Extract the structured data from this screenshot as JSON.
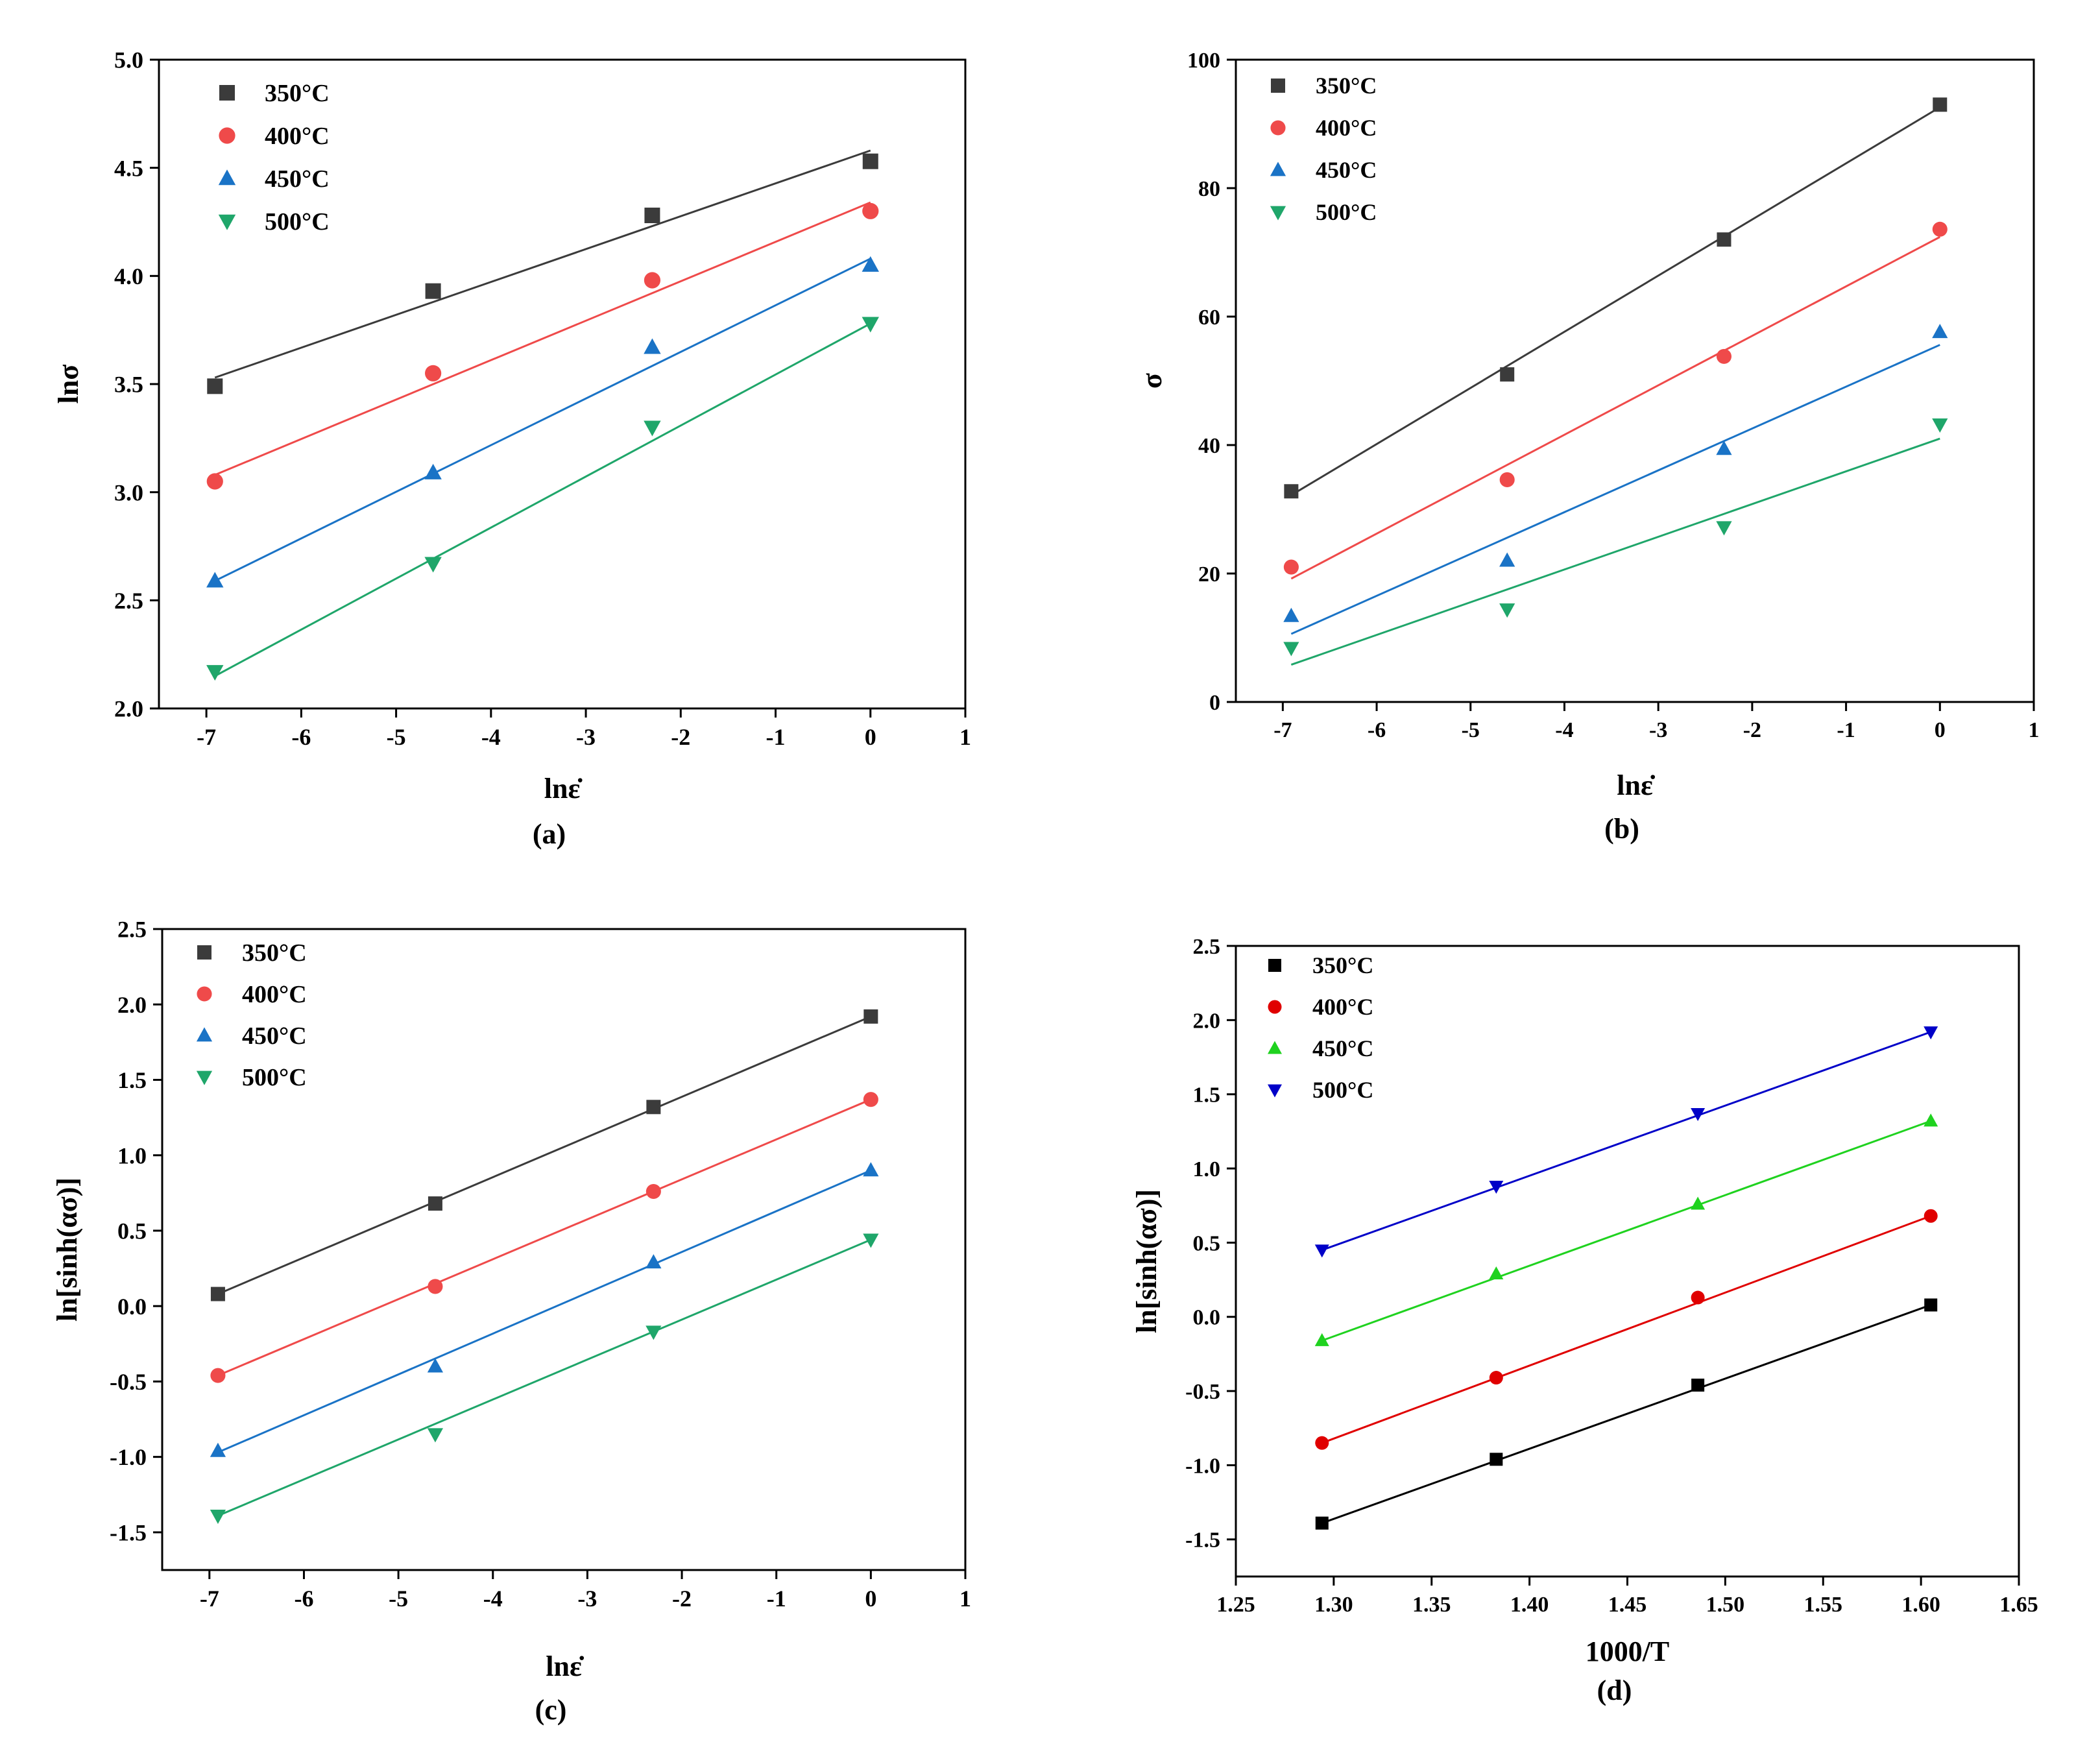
{
  "colors": {
    "p350": "#3b3b3b",
    "p400": "#ef4a4a",
    "p450": "#1a73c6",
    "p500": "#1fa66a",
    "d350": "#000000",
    "d400": "#e00000",
    "d450": "#1fd21f",
    "d500": "#0000c8"
  },
  "chart_data": [
    {
      "id": "a",
      "type": "scatter",
      "panel_label": "(a)",
      "xlabel": "lnε̇",
      "ylabel": "lnσ",
      "xlim": [
        -7.5,
        1
      ],
      "ylim": [
        2.0,
        5.0
      ],
      "xticks": [
        -7,
        -6,
        -5,
        -4,
        -3,
        -2,
        -1,
        0,
        1
      ],
      "yticks": [
        2.0,
        2.5,
        3.0,
        3.5,
        4.0,
        4.5,
        5.0
      ],
      "ytick_decimals": 1,
      "legend": "top-left",
      "series": [
        {
          "name": "350°C",
          "marker": "square",
          "color": "p350",
          "x": [
            -6.91,
            -4.61,
            -2.3,
            0
          ],
          "y": [
            3.49,
            3.93,
            4.28,
            4.53
          ],
          "fit": [
            [
              -6.91,
              3.53
            ],
            [
              0,
              4.58
            ]
          ]
        },
        {
          "name": "400°C",
          "marker": "circle",
          "color": "p400",
          "x": [
            -6.91,
            -4.61,
            -2.3,
            0
          ],
          "y": [
            3.05,
            3.55,
            3.98,
            4.3
          ],
          "fit": [
            [
              -6.91,
              3.08
            ],
            [
              0,
              4.34
            ]
          ]
        },
        {
          "name": "450°C",
          "marker": "triangle-up",
          "color": "p450",
          "x": [
            -6.91,
            -4.61,
            -2.3,
            0
          ],
          "y": [
            2.59,
            3.09,
            3.67,
            4.05
          ],
          "fit": [
            [
              -6.91,
              2.59
            ],
            [
              0,
              4.08
            ]
          ]
        },
        {
          "name": "500°C",
          "marker": "triangle-down",
          "color": "p500",
          "x": [
            -6.91,
            -4.61,
            -2.3,
            0
          ],
          "y": [
            2.17,
            2.67,
            3.3,
            3.78
          ],
          "fit": [
            [
              -6.91,
              2.15
            ],
            [
              0,
              3.78
            ]
          ]
        }
      ]
    },
    {
      "id": "b",
      "type": "scatter",
      "panel_label": "(b)",
      "xlabel": "lnε̇",
      "ylabel": "σ",
      "xlim": [
        -7.5,
        1
      ],
      "ylim": [
        0,
        100
      ],
      "xticks": [
        -7,
        -6,
        -5,
        -4,
        -3,
        -2,
        -1,
        0,
        1
      ],
      "yticks": [
        0,
        20,
        40,
        60,
        80,
        100
      ],
      "ytick_decimals": 0,
      "legend": "top-left",
      "series": [
        {
          "name": "350°C",
          "marker": "square",
          "color": "p350",
          "x": [
            -6.91,
            -4.61,
            -2.3,
            0
          ],
          "y": [
            32.8,
            51,
            72,
            93
          ],
          "fit": [
            [
              -6.91,
              32.2
            ],
            [
              0,
              92.6
            ]
          ]
        },
        {
          "name": "400°C",
          "marker": "circle",
          "color": "p400",
          "x": [
            -6.91,
            -4.61,
            -2.3,
            0
          ],
          "y": [
            21,
            34.6,
            53.8,
            73.6
          ],
          "fit": [
            [
              -6.91,
              19.2
            ],
            [
              0,
              72.4
            ]
          ]
        },
        {
          "name": "450°C",
          "marker": "triangle-up",
          "color": "p450",
          "x": [
            -6.91,
            -4.61,
            -2.3,
            0
          ],
          "y": [
            13.4,
            22,
            39.4,
            57.6
          ],
          "fit": [
            [
              -6.91,
              10.6
            ],
            [
              0,
              55.6
            ]
          ]
        },
        {
          "name": "500°C",
          "marker": "triangle-down",
          "color": "p500",
          "x": [
            -6.91,
            -4.61,
            -2.3,
            0
          ],
          "y": [
            8.4,
            14.4,
            27.2,
            43.2
          ],
          "fit": [
            [
              -6.91,
              5.8
            ],
            [
              0,
              41.0
            ]
          ]
        }
      ]
    },
    {
      "id": "c",
      "type": "scatter",
      "panel_label": "(c)",
      "xlabel": "lnε̇",
      "ylabel": "ln[sinh(ασ)]",
      "xlim": [
        -7.5,
        1
      ],
      "ylim": [
        -1.75,
        2.5
      ],
      "xticks": [
        -7,
        -6,
        -5,
        -4,
        -3,
        -2,
        -1,
        0,
        1
      ],
      "yticks": [
        -1.5,
        -1.0,
        -0.5,
        0.0,
        0.5,
        1.0,
        1.5,
        2.0,
        2.5
      ],
      "ytick_decimals": 1,
      "legend": "top-left",
      "series": [
        {
          "name": "350°C",
          "marker": "square",
          "color": "p350",
          "x": [
            -6.91,
            -4.61,
            -2.3,
            0
          ],
          "y": [
            0.08,
            0.68,
            1.32,
            1.92
          ],
          "fit": [
            [
              -6.91,
              0.08
            ],
            [
              0,
              1.92
            ]
          ]
        },
        {
          "name": "400°C",
          "marker": "circle",
          "color": "p400",
          "x": [
            -6.91,
            -4.61,
            -2.3,
            0
          ],
          "y": [
            -0.46,
            0.13,
            0.76,
            1.37
          ],
          "fit": [
            [
              -6.91,
              -0.46
            ],
            [
              0,
              1.37
            ]
          ]
        },
        {
          "name": "450°C",
          "marker": "triangle-up",
          "color": "p450",
          "x": [
            -6.91,
            -4.61,
            -2.3,
            0
          ],
          "y": [
            -0.96,
            -0.4,
            0.29,
            0.9
          ],
          "fit": [
            [
              -6.91,
              -0.97
            ],
            [
              0,
              0.9
            ]
          ]
        },
        {
          "name": "500°C",
          "marker": "triangle-down",
          "color": "p500",
          "x": [
            -6.91,
            -4.61,
            -2.3,
            0
          ],
          "y": [
            -1.39,
            -0.85,
            -0.17,
            0.44
          ],
          "fit": [
            [
              -6.91,
              -1.39
            ],
            [
              0,
              0.44
            ]
          ]
        }
      ]
    },
    {
      "id": "d",
      "type": "scatter",
      "panel_label": "(d)",
      "xlabel": "1000/T",
      "ylabel": "ln[sinh(ασ)]",
      "xlim": [
        1.25,
        1.65
      ],
      "ylim": [
        -1.75,
        2.5
      ],
      "xticks": [
        1.25,
        1.3,
        1.35,
        1.4,
        1.45,
        1.5,
        1.55,
        1.6,
        1.65
      ],
      "xtick_decimals": 2,
      "yticks": [
        -1.5,
        -1.0,
        -0.5,
        0.0,
        0.5,
        1.0,
        1.5,
        2.0,
        2.5
      ],
      "ytick_decimals": 1,
      "legend": "top-left",
      "series": [
        {
          "name": "350°C",
          "marker": "square",
          "color": "d350",
          "x": [
            1.294,
            1.383,
            1.486,
            1.605
          ],
          "y": [
            -1.39,
            -0.96,
            -0.46,
            0.08
          ],
          "fit": [
            [
              1.294,
              -1.39
            ],
            [
              1.605,
              0.08
            ]
          ]
        },
        {
          "name": "400°C",
          "marker": "circle",
          "color": "d400",
          "x": [
            1.294,
            1.383,
            1.486,
            1.605
          ],
          "y": [
            -0.85,
            -0.41,
            0.13,
            0.68
          ],
          "fit": [
            [
              1.294,
              -0.85
            ],
            [
              1.605,
              0.68
            ]
          ]
        },
        {
          "name": "450°C",
          "marker": "triangle-up",
          "color": "d450",
          "x": [
            1.294,
            1.383,
            1.486,
            1.605
          ],
          "y": [
            -0.16,
            0.29,
            0.76,
            1.32
          ],
          "fit": [
            [
              1.294,
              -0.16
            ],
            [
              1.605,
              1.32
            ]
          ]
        },
        {
          "name": "500°C",
          "marker": "triangle-down",
          "color": "d500",
          "x": [
            1.294,
            1.383,
            1.486,
            1.605
          ],
          "y": [
            0.45,
            0.88,
            1.37,
            1.92
          ],
          "fit": [
            [
              1.294,
              0.45
            ],
            [
              1.605,
              1.92
            ]
          ]
        }
      ]
    }
  ]
}
